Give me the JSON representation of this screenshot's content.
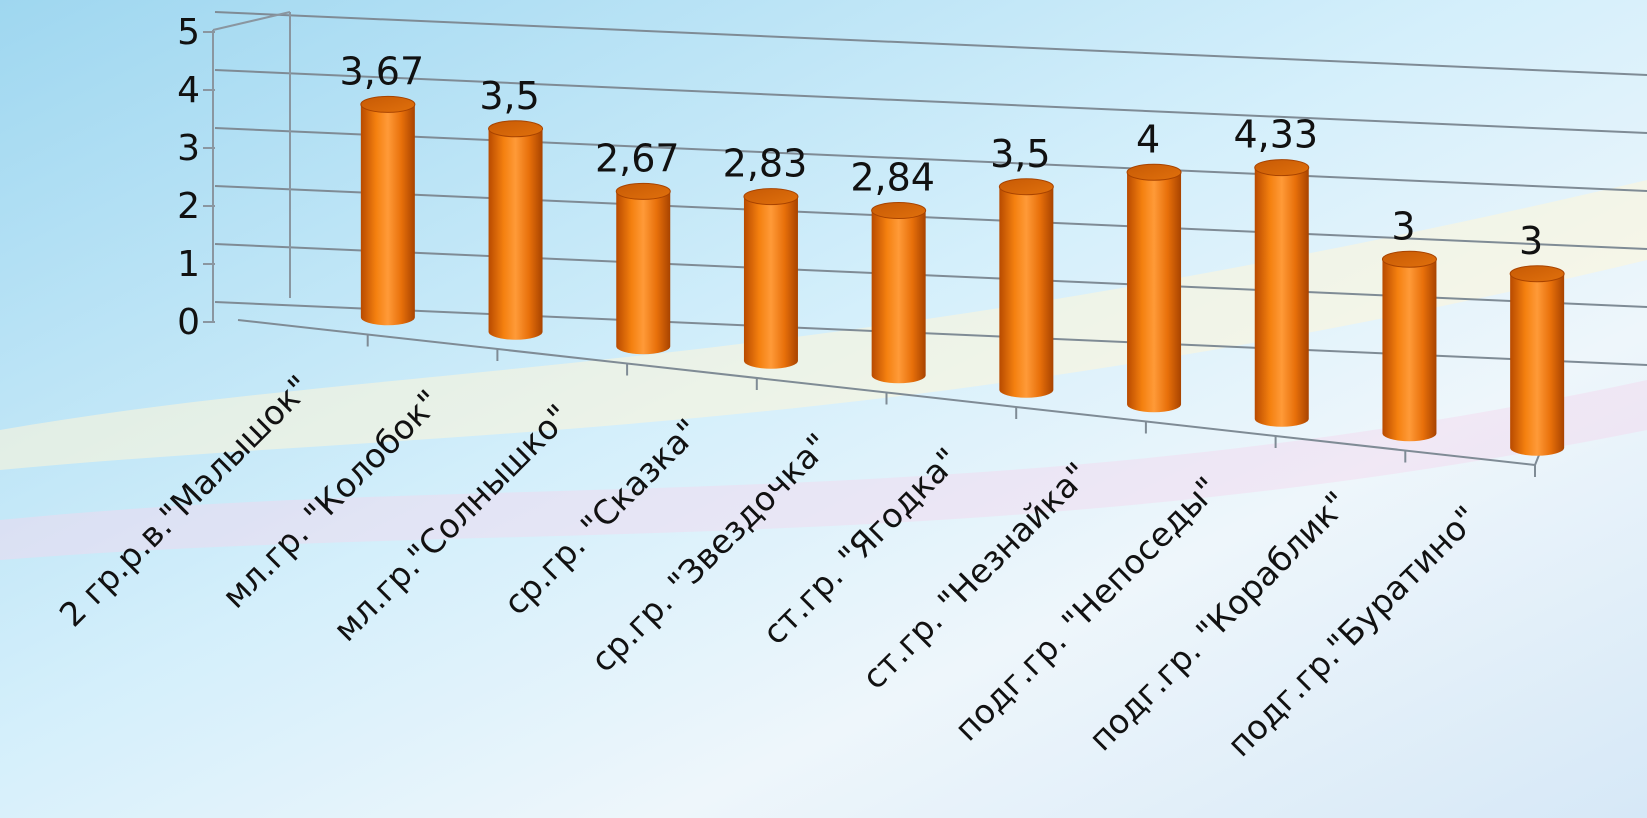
{
  "chart_data": {
    "type": "bar",
    "style": "3d-cylinder",
    "categories": [
      "2 гр.р.в.\"Малышок\"",
      "мл.гр. \"Колобок\"",
      "мл.гр.\"Солнышко\"",
      "ср.гр. \"Сказка\"",
      "ср.гр. \"Звездочка\"",
      "ст.гр. \"Ягодка\"",
      "ст.гр.  \"Незнайка\"",
      "подг.гр. \"Непоседы\"",
      "подг.гр. \"Кораблик\"",
      "подг.гр.\"Буратино\""
    ],
    "values": [
      3.67,
      3.5,
      2.67,
      2.83,
      2.84,
      3.5,
      4,
      4.33,
      3,
      3
    ],
    "data_labels": [
      "3,67",
      "3,5",
      "2,67",
      "2,83",
      "2,84",
      "3,5",
      "4",
      "4,33",
      "3",
      "3"
    ],
    "y_ticks": [
      "0",
      "1",
      "2",
      "3",
      "4",
      "5"
    ],
    "ylim": [
      0,
      5
    ],
    "grid": true,
    "legend": "none",
    "bar_color": "#F07A10",
    "bar_highlight": "#FFB060",
    "bar_shadow": "#B04A00"
  }
}
